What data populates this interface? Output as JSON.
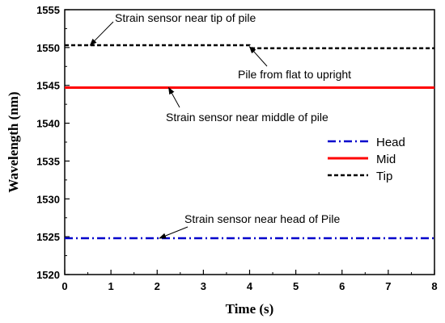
{
  "chart_data": {
    "type": "line",
    "xlabel": "Time (s)",
    "ylabel": "Wavelength (nm)",
    "xlim": [
      0,
      8
    ],
    "ylim": [
      1520,
      1555
    ],
    "x_ticks": [
      0,
      1,
      2,
      3,
      4,
      5,
      6,
      7,
      8
    ],
    "y_ticks": [
      1520,
      1525,
      1530,
      1535,
      1540,
      1545,
      1550,
      1555
    ],
    "grid": false,
    "legend_position": "right",
    "series": [
      {
        "name": "Head",
        "color": "#0000cc",
        "style": "dash-dot",
        "points": [
          [
            0,
            1524.8
          ],
          [
            8,
            1524.8
          ]
        ]
      },
      {
        "name": "Mid",
        "color": "#ff0000",
        "style": "solid",
        "points": [
          [
            0,
            1544.7
          ],
          [
            8,
            1544.7
          ]
        ]
      },
      {
        "name": "Tip",
        "color": "#000000",
        "style": "dashed",
        "points": [
          [
            0,
            1550.3
          ],
          [
            4.0,
            1550.3
          ],
          [
            4.05,
            1549.9
          ],
          [
            8,
            1549.9
          ]
        ]
      }
    ],
    "annotations": [
      {
        "text": "Strain sensor near tip of pile",
        "target": [
          0.55,
          1550.3
        ]
      },
      {
        "text": "Pile from flat to upright",
        "target": [
          4.0,
          1550.1
        ]
      },
      {
        "text": "Strain sensor near middle of pile",
        "target": [
          2.25,
          1544.7
        ]
      },
      {
        "text": "Strain sensor near head of Pile",
        "target": [
          2.05,
          1524.8
        ]
      }
    ]
  }
}
